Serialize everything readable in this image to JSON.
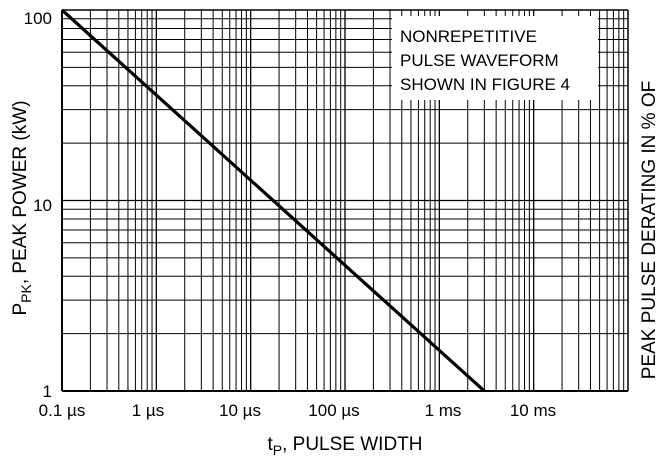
{
  "chart_data": {
    "type": "line",
    "x_scale": "log",
    "y_scale": "log",
    "xlim": [
      "0.1 µs",
      "100 ms"
    ],
    "ylim": [
      1,
      100
    ],
    "x_ticks": [
      "0.1 µs",
      "1 µs",
      "10 µs",
      "100 µs",
      "1 ms",
      "10 ms"
    ],
    "y_ticks": [
      "1",
      "10",
      "100"
    ],
    "xlabel": {
      "main": "t",
      "sub": "P",
      "rest": ", PULSE WIDTH"
    },
    "ylabel": {
      "main": "P",
      "sub": "PK",
      "rest": ", PEAK POWER (kW)"
    },
    "right_label": "PEAK PULSE DERATING IN % OF",
    "annotation": [
      "NONREPETITIVE",
      "PULSE WAVEFORM",
      "SHOWN IN FIGURE 4"
    ],
    "grid": true,
    "series": [
      {
        "x": [
          "0.1 µs",
          "3 ms"
        ],
        "y": [
          100,
          1
        ]
      }
    ]
  }
}
